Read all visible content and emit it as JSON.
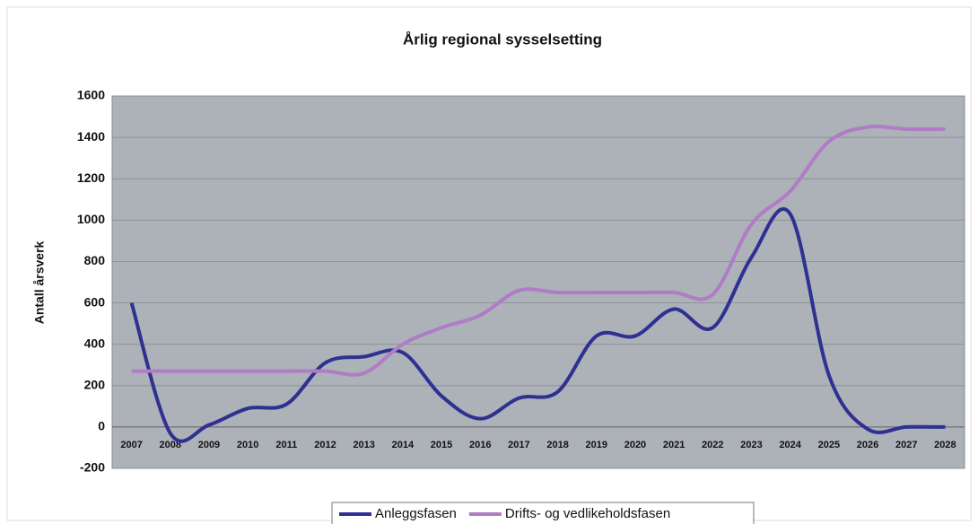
{
  "chart_data": {
    "type": "line",
    "title": "Årlig regional sysselsetting",
    "y_label": "Antall årsverk",
    "categories": [
      "2007",
      "2008",
      "2009",
      "2010",
      "2011",
      "2012",
      "2013",
      "2014",
      "2015",
      "2016",
      "2017",
      "2018",
      "2019",
      "2020",
      "2021",
      "2022",
      "2023",
      "2024",
      "2025",
      "2026",
      "2027",
      "2028"
    ],
    "series": [
      {
        "name": "Anleggsfasen",
        "color": "#2e3192",
        "values": [
          600,
          -30,
          10,
          90,
          110,
          310,
          340,
          360,
          150,
          40,
          140,
          170,
          440,
          440,
          570,
          480,
          820,
          1030,
          250,
          -10,
          0,
          0
        ]
      },
      {
        "name": "Drifts- og vedlikeholdsfasen",
        "color": "#b07cc6",
        "values": [
          270,
          270,
          270,
          270,
          270,
          270,
          260,
          400,
          480,
          540,
          660,
          650,
          650,
          650,
          650,
          640,
          980,
          1140,
          1380,
          1450,
          1440,
          1440
        ]
      }
    ],
    "ylim": [
      -200,
      1600
    ],
    "yticks": [
      -200,
      0,
      200,
      400,
      600,
      800,
      1000,
      1200,
      1400,
      1600
    ],
    "grid": true,
    "legend": "bottom"
  }
}
